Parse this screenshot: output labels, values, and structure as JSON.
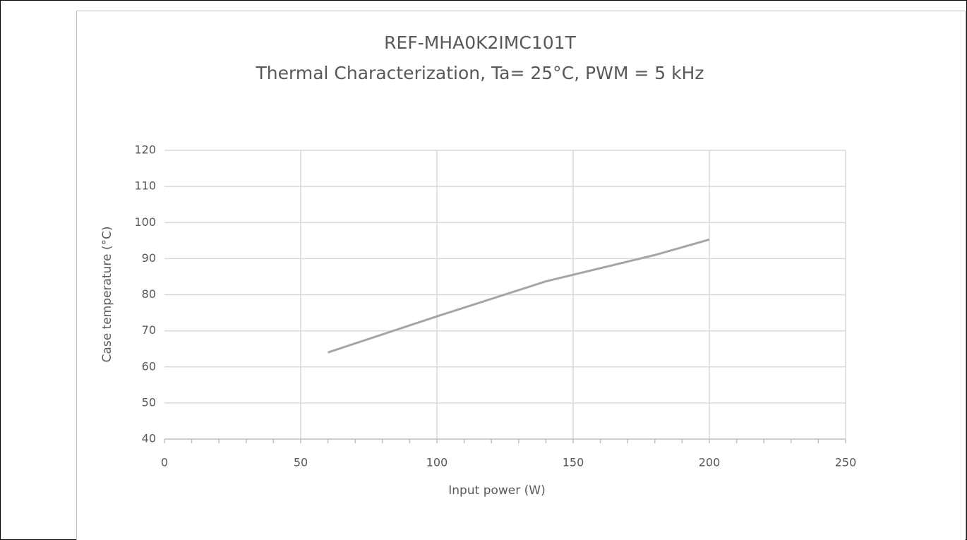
{
  "chart_data": {
    "type": "line",
    "title": "REF-MHA0K2IMC101T",
    "subtitle": "Thermal Characterization, Ta= 25°C, PWM = 5 kHz",
    "x_label": "Input power (W)",
    "y_label": "Case temperature (°C)",
    "x": [
      60,
      100,
      140,
      180,
      200
    ],
    "series": [
      {
        "name": "Case temperature",
        "color": "#a5a5a5",
        "values": [
          64,
          74,
          83.7,
          91,
          95.3
        ]
      }
    ],
    "xlim": [
      0,
      250
    ],
    "xticks": [
      0,
      50,
      100,
      150,
      200,
      250
    ],
    "xminorticks": [
      10,
      20,
      30,
      40,
      60,
      70,
      80,
      90,
      110,
      120,
      130,
      140,
      160,
      170,
      180,
      190,
      210,
      220,
      230,
      240
    ],
    "ylim": [
      40,
      120
    ],
    "yticks": [
      40,
      50,
      60,
      70,
      80,
      90,
      100,
      110,
      120
    ],
    "grid": true
  }
}
